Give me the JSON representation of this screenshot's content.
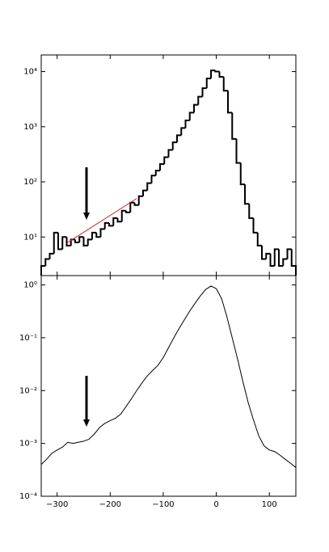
{
  "chart_data": [
    {
      "type": "histogram",
      "bins": [
        -330,
        -322,
        -314,
        -306,
        -298,
        -290,
        -282,
        -274,
        -266,
        -258,
        -250,
        -242,
        -234,
        -226,
        -218,
        -210,
        -202,
        -194,
        -186,
        -178,
        -170,
        -162,
        -154,
        -146,
        -138,
        -130,
        -122,
        -114,
        -106,
        -98,
        -90,
        -82,
        -74,
        -66,
        -58,
        -50,
        -42,
        -34,
        -26,
        -18,
        -10,
        -2,
        6,
        14,
        22,
        30,
        38,
        46,
        54,
        62,
        70,
        78,
        86,
        94,
        102,
        110,
        118,
        126,
        134,
        142,
        150
      ],
      "values": [
        3,
        4,
        5,
        12,
        6,
        10,
        7,
        9,
        8,
        10,
        7,
        9,
        12,
        10,
        14,
        18,
        16,
        22,
        19,
        30,
        28,
        42,
        38,
        55,
        70,
        95,
        130,
        160,
        210,
        280,
        380,
        520,
        700,
        950,
        1300,
        1800,
        2500,
        3500,
        5000,
        7500,
        10500,
        10000,
        8000,
        4500,
        1800,
        600,
        220,
        90,
        40,
        22,
        12,
        7,
        4,
        5,
        3,
        6,
        3,
        4,
        6,
        3
      ],
      "color": "#000000",
      "fit": {
        "x": [
          -280,
          -150
        ],
        "values": [
          8,
          50
        ],
        "color": "#d62728"
      },
      "log_y": true,
      "xlim": [
        -330,
        150
      ],
      "xticks": [
        -300,
        -200,
        -100,
        0,
        100
      ],
      "ylim": [
        2,
        20000
      ],
      "yticks": [
        {
          "value": 10,
          "label": "10¹"
        },
        {
          "value": 100,
          "label": "10²"
        },
        {
          "value": 1000,
          "label": "10³"
        },
        {
          "value": 10000,
          "label": "10⁴"
        }
      ]
    },
    {
      "type": "line",
      "x": [
        -330,
        -320,
        -310,
        -300,
        -290,
        -280,
        -270,
        -260,
        -250,
        -240,
        -230,
        -220,
        -210,
        -200,
        -190,
        -180,
        -170,
        -160,
        -150,
        -140,
        -130,
        -120,
        -110,
        -100,
        -90,
        -80,
        -70,
        -60,
        -50,
        -40,
        -30,
        -20,
        -10,
        0,
        10,
        20,
        30,
        40,
        50,
        60,
        70,
        80,
        90,
        100,
        110,
        120,
        130,
        140,
        150
      ],
      "values": [
        0.0004,
        0.0005,
        0.00065,
        0.00075,
        0.00085,
        0.00105,
        0.001,
        0.00105,
        0.0011,
        0.0012,
        0.0015,
        0.002,
        0.0024,
        0.0027,
        0.003,
        0.0036,
        0.005,
        0.007,
        0.01,
        0.014,
        0.019,
        0.024,
        0.03,
        0.042,
        0.065,
        0.1,
        0.15,
        0.22,
        0.32,
        0.45,
        0.62,
        0.82,
        0.95,
        0.85,
        0.55,
        0.25,
        0.1,
        0.04,
        0.015,
        0.006,
        0.0028,
        0.0014,
        0.0009,
        0.00075,
        0.0007,
        0.0006,
        0.0005,
        0.00042,
        0.00035
      ],
      "color": "#000000",
      "log_y": true,
      "xlim": [
        -330,
        150
      ],
      "xticks": [
        {
          "value": -300,
          "label": "−300"
        },
        {
          "value": -200,
          "label": "−200"
        },
        {
          "value": -100,
          "label": "−100"
        },
        {
          "value": 0,
          "label": "0"
        },
        {
          "value": 100,
          "label": "100"
        }
      ],
      "ylim": [
        0.0001,
        1.5
      ],
      "yticks": [
        {
          "value": 0.0001,
          "label": "10⁻⁴"
        },
        {
          "value": 0.001,
          "label": "10⁻³"
        },
        {
          "value": 0.01,
          "label": "10⁻²"
        },
        {
          "value": 0.1,
          "label": "10⁻¹"
        },
        {
          "value": 1,
          "label": "10⁰"
        }
      ]
    }
  ]
}
